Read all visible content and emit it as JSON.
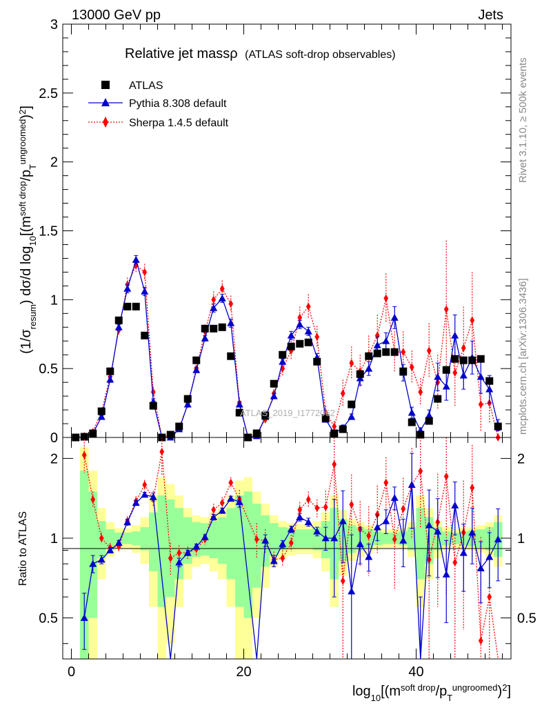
{
  "header": {
    "left": "13000 GeV pp",
    "right": "Jets"
  },
  "side_labels": {
    "rivet": "Rivet 3.1.10, ≥ 500k events",
    "mcplots": "mcplots.cern.ch [arXiv:1306.3436]"
  },
  "watermark": "ATLAS_2019_I1772062",
  "title": {
    "main": "Relative jet massρ",
    "sub": "(ATLAS soft-drop observables)"
  },
  "legend": {
    "atlas": "ATLAS",
    "pythia": "Pythia 8.308 default",
    "sherpa": "Sherpa 1.4.5 default"
  },
  "axes": {
    "top_ylabel": "(1/σresum) dσ/d log10[(msoft drop/pTungroomed)2]",
    "top_yticks": [
      "0",
      "0.5",
      "1",
      "1.5",
      "2",
      "2.5",
      "3"
    ],
    "bottom_ylabel": "Ratio to ATLAS",
    "bottom_yticks": [
      "0.5",
      "1",
      "2"
    ],
    "xticks": [
      "0",
      "20",
      "40"
    ],
    "xlabel": "log10[(msoft drop/pTungroomed)2]"
  },
  "colors": {
    "atlas": "#000000",
    "pythia": "#0000cc",
    "sherpa": "#ff0000",
    "band_inner": "#99ff99",
    "band_outer": "#ffff99"
  },
  "chart_data": {
    "type": "line",
    "x_bins": [
      0,
      1,
      2,
      3,
      4,
      5,
      6,
      7,
      8,
      9,
      10,
      11,
      12,
      13,
      14,
      15,
      16,
      17,
      18,
      19,
      20,
      21,
      22,
      23,
      24,
      25,
      26,
      27,
      28,
      29,
      30,
      31,
      32,
      33,
      34,
      35,
      36,
      37,
      38,
      39,
      40,
      41,
      42,
      43,
      44,
      45,
      46,
      47,
      48,
      49,
      50
    ],
    "xlim": [
      -1,
      51
    ],
    "main_ylim": [
      0,
      3
    ],
    "ratio_ylim": [
      0.35,
      2.4
    ],
    "series": [
      {
        "name": "ATLAS",
        "values": [
          0.0,
          0.005,
          0.03,
          0.19,
          0.48,
          0.85,
          0.95,
          0.95,
          0.74,
          0.23,
          0.0,
          0.02,
          0.08,
          0.28,
          0.56,
          0.79,
          0.79,
          0.8,
          0.59,
          0.18,
          0.0,
          0.03,
          0.16,
          0.39,
          0.6,
          0.66,
          0.68,
          0.69,
          0.55,
          0.14,
          0.03,
          0.06,
          0.24,
          0.46,
          0.59,
          0.61,
          0.62,
          0.62,
          0.48,
          0.11,
          0.02,
          0.12,
          0.28,
          0.49,
          0.57,
          0.56,
          0.56,
          0.57,
          0.41,
          0.08,
          null
        ]
      },
      {
        "name": "Pythia 8.308 default",
        "values": [
          0.0,
          0.003,
          0.03,
          0.15,
          0.42,
          0.8,
          1.08,
          1.29,
          1.06,
          0.26,
          0.0,
          0.0,
          0.06,
          0.24,
          0.49,
          0.72,
          0.94,
          1.01,
          0.83,
          0.24,
          0.0,
          0.01,
          0.15,
          0.3,
          0.55,
          0.74,
          0.82,
          0.77,
          0.58,
          0.13,
          0.03,
          0.07,
          0.15,
          0.43,
          0.5,
          0.67,
          0.7,
          0.87,
          0.47,
          0.18,
          0.05,
          0.16,
          0.44,
          0.37,
          0.74,
          0.45,
          0.58,
          0.44,
          0.35,
          0.09,
          null
        ],
        "errors": [
          0.0,
          0.0,
          0.005,
          0.01,
          0.02,
          0.02,
          0.03,
          0.03,
          0.03,
          0.02,
          0.0,
          0.0,
          0.01,
          0.01,
          0.02,
          0.02,
          0.03,
          0.03,
          0.03,
          0.02,
          0.0,
          0.0,
          0.01,
          0.02,
          0.02,
          0.03,
          0.03,
          0.03,
          0.03,
          0.02,
          0.01,
          0.02,
          0.02,
          0.05,
          0.05,
          0.06,
          0.06,
          0.08,
          0.06,
          0.04,
          0.02,
          0.04,
          0.1,
          0.1,
          0.15,
          0.1,
          0.12,
          0.12,
          0.1,
          0.04,
          null
        ]
      },
      {
        "name": "Sherpa 1.4.5 default",
        "values": [
          0.0,
          0.01,
          0.04,
          0.19,
          0.44,
          0.78,
          1.11,
          1.25,
          1.2,
          0.33,
          0.0,
          0.02,
          0.07,
          0.24,
          0.5,
          0.77,
          1.0,
          1.08,
          0.97,
          0.25,
          0.0,
          0.03,
          0.13,
          0.32,
          0.5,
          0.63,
          0.87,
          0.95,
          0.73,
          0.18,
          0.08,
          0.32,
          0.54,
          0.48,
          0.6,
          0.74,
          1.01,
          0.62,
          0.62,
          0.51,
          0.33,
          0.63,
          0.4,
          0.93,
          0.47,
          0.65,
          0.85,
          0.24,
          0.25,
          0.0,
          null
        ],
        "errors": [
          0.0,
          0.0,
          0.01,
          0.02,
          0.03,
          0.04,
          0.05,
          0.06,
          0.06,
          0.04,
          0.0,
          0.01,
          0.02,
          0.03,
          0.04,
          0.05,
          0.06,
          0.06,
          0.06,
          0.04,
          0.0,
          0.01,
          0.03,
          0.05,
          0.06,
          0.07,
          0.08,
          0.09,
          0.08,
          0.05,
          0.04,
          0.1,
          0.12,
          0.12,
          0.14,
          0.15,
          0.18,
          0.15,
          0.15,
          0.12,
          0.1,
          0.2,
          0.2,
          0.5,
          0.25,
          0.3,
          0.35,
          0.2,
          0.15,
          0.05,
          null
        ]
      }
    ],
    "ratio_series": [
      {
        "name": "Pythia 8.308 default",
        "values": [
          null,
          0.5,
          0.8,
          0.83,
          0.9,
          0.96,
          1.15,
          1.36,
          1.46,
          1.43,
          null,
          0.0,
          0.81,
          0.88,
          0.93,
          1.01,
          1.2,
          1.27,
          1.41,
          1.37,
          null,
          0.0,
          0.98,
          0.82,
          0.95,
          1.08,
          1.2,
          1.15,
          1.06,
          1.0,
          1.0,
          1.16,
          0.63,
          0.95,
          0.85,
          1.1,
          1.16,
          1.42,
          0.98,
          1.59,
          0.0,
          1.12,
          1.06,
          0.73,
          1.33,
          0.88,
          1.05,
          0.77,
          0.85,
          0.99,
          null
        ],
        "errors": [
          null,
          0.12,
          0.06,
          0.03,
          0.02,
          0.02,
          0.03,
          0.03,
          0.03,
          0.05,
          null,
          0.0,
          0.03,
          0.02,
          0.02,
          0.02,
          0.03,
          0.03,
          0.03,
          0.06,
          null,
          0.0,
          0.05,
          0.04,
          0.03,
          0.03,
          0.04,
          0.04,
          0.04,
          0.1,
          0.4,
          0.35,
          0.4,
          0.15,
          0.1,
          0.12,
          0.12,
          0.14,
          0.2,
          0.5,
          0.6,
          0.4,
          0.35,
          0.25,
          0.3,
          0.25,
          0.25,
          0.2,
          0.2,
          0.3,
          null
        ]
      },
      {
        "name": "Sherpa 1.4.5 default",
        "values": [
          null,
          2.06,
          1.4,
          1.0,
          0.92,
          0.93,
          1.16,
          1.38,
          1.59,
          1.41,
          2.12,
          0.84,
          0.88,
          0.88,
          0.91,
          0.99,
          1.28,
          1.36,
          1.62,
          1.4,
          null,
          0.99,
          0.98,
          0.83,
          0.84,
          0.96,
          1.28,
          1.4,
          1.3,
          1.31,
          1.9,
          0.69,
          1.34,
          1.08,
          1.02,
          1.23,
          1.62,
          0.99,
          1.29,
          1.59,
          1.79,
          0.83,
          1.15,
          1.71,
          0.81,
          1.05,
          1.55,
          0.41,
          0.6,
          0.0,
          null
        ],
        "errors": [
          null,
          0.3,
          0.1,
          0.05,
          0.04,
          0.04,
          0.05,
          0.06,
          0.07,
          0.1,
          0.4,
          0.12,
          0.06,
          0.05,
          0.05,
          0.05,
          0.07,
          0.07,
          0.08,
          0.12,
          null,
          0.15,
          0.1,
          0.06,
          0.06,
          0.07,
          0.09,
          0.1,
          0.1,
          0.2,
          0.6,
          0.5,
          0.4,
          0.3,
          0.3,
          0.35,
          0.4,
          0.35,
          0.4,
          0.6,
          0.7,
          0.5,
          0.6,
          1.1,
          0.5,
          0.6,
          0.7,
          0.6,
          0.5,
          0.3,
          null
        ]
      }
    ],
    "band_inner_halfwidth": [
      null,
      0.8,
      0.5,
      0.16,
      0.08,
      0.05,
      0.05,
      0.06,
      0.1,
      0.25,
      0.45,
      0.4,
      0.3,
      0.2,
      0.15,
      0.14,
      0.16,
      0.2,
      0.3,
      0.45,
      0.5,
      0.35,
      0.22,
      0.14,
      0.1,
      0.09,
      0.08,
      0.08,
      0.1,
      0.16,
      0.3,
      0.18,
      0.12,
      0.1,
      0.08,
      0.06,
      0.05,
      0.05,
      0.06,
      0.1,
      0.3,
      0.2,
      0.1,
      0.06,
      0.05,
      0.06,
      0.07,
      0.08,
      0.1,
      0.15,
      null
    ],
    "band_outer_halfwidth": [
      null,
      1.2,
      0.8,
      0.3,
      0.15,
      0.09,
      0.09,
      0.12,
      0.2,
      0.45,
      0.7,
      0.6,
      0.45,
      0.3,
      0.22,
      0.2,
      0.25,
      0.3,
      0.45,
      0.65,
      0.7,
      0.5,
      0.35,
      0.22,
      0.16,
      0.14,
      0.13,
      0.13,
      0.16,
      0.25,
      0.45,
      0.28,
      0.18,
      0.15,
      0.12,
      0.09,
      0.08,
      0.08,
      0.09,
      0.15,
      0.45,
      0.3,
      0.16,
      0.1,
      0.08,
      0.09,
      0.1,
      0.12,
      0.15,
      0.22,
      null
    ]
  }
}
